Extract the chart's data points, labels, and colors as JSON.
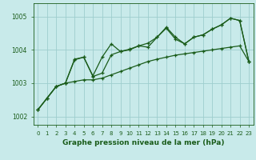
{
  "title": "Graphe pression niveau de la mer (hPa)",
  "background_color": "#c8eaea",
  "grid_color": "#9ecece",
  "line_color": "#1a5c1a",
  "xlim": [
    -0.5,
    23.5
  ],
  "ylim": [
    1001.75,
    1005.4
  ],
  "yticks": [
    1002,
    1003,
    1004,
    1005
  ],
  "xticks": [
    0,
    1,
    2,
    3,
    4,
    5,
    6,
    7,
    8,
    9,
    10,
    11,
    12,
    13,
    14,
    15,
    16,
    17,
    18,
    19,
    20,
    21,
    22,
    23
  ],
  "series": [
    [
      1002.2,
      1002.55,
      1002.9,
      1003.0,
      1003.05,
      1003.1,
      1003.1,
      1003.15,
      1003.25,
      1003.35,
      1003.45,
      1003.55,
      1003.65,
      1003.72,
      1003.78,
      1003.84,
      1003.88,
      1003.92,
      1003.96,
      1004.0,
      1004.04,
      1004.08,
      1004.12,
      1003.65
    ],
    [
      1002.2,
      1002.55,
      1002.9,
      1003.0,
      1003.7,
      1003.78,
      1003.2,
      1003.3,
      1003.85,
      1003.95,
      1004.0,
      1004.12,
      1004.08,
      1004.38,
      1004.65,
      1004.32,
      1004.18,
      1004.38,
      1004.45,
      1004.62,
      1004.75,
      1004.95,
      1004.88,
      1003.65
    ],
    [
      1002.2,
      1002.55,
      1002.9,
      1003.0,
      1003.72,
      1003.78,
      1003.22,
      1003.78,
      1004.18,
      1003.95,
      1004.02,
      1004.12,
      1004.2,
      1004.38,
      1004.68,
      1004.38,
      1004.18,
      1004.38,
      1004.45,
      1004.62,
      1004.75,
      1004.95,
      1004.88,
      1003.65
    ]
  ],
  "ylabel_fontsize": 5.5,
  "xlabel_fontsize": 6.5,
  "tick_fontsize": 5.0,
  "linewidth": 0.9,
  "markersize": 3.5
}
